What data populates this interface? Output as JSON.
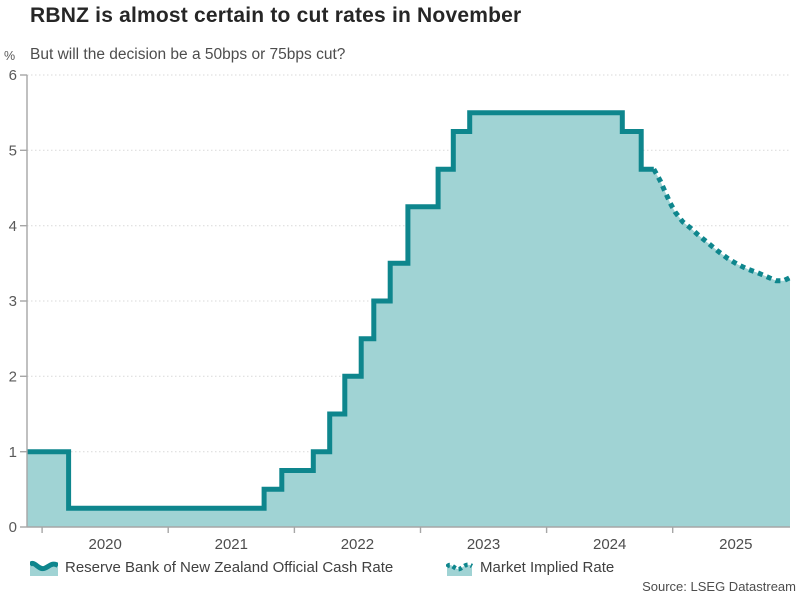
{
  "source": {
    "text": "Source: LSEG Datastream"
  },
  "colors": {
    "line": "#0e868d",
    "fill": "#a0d3d4",
    "grid": "#d9d9d9",
    "axis": "#a6a6a6",
    "tick_text": "#595959",
    "title_text": "#262626",
    "subtitle_text": "#4d4d4d",
    "legend_text": "#404040"
  },
  "chart_data": {
    "type": "area",
    "title": "RBNZ is almost certain to cut rates in November",
    "subtitle": "But will the decision be a 50bps or 75bps cut?",
    "ylabel": "%",
    "xlabel": "",
    "ylim": [
      0,
      6
    ],
    "x_domain": [
      2019.88,
      2025.93
    ],
    "y_ticks": [
      0,
      1,
      2,
      3,
      4,
      5,
      6
    ],
    "x_ticks": [
      2020,
      2021,
      2022,
      2023,
      2024,
      2025
    ],
    "grid": "horizontal-dotted",
    "legend_position": "bottom",
    "series": [
      {
        "name": "Reserve Bank of New Zealand Official Cash Rate",
        "style": "step-solid",
        "points": [
          [
            2019.88,
            1.0
          ],
          [
            2020.21,
            0.25
          ],
          [
            2021.76,
            0.5
          ],
          [
            2021.9,
            0.75
          ],
          [
            2022.15,
            1.0
          ],
          [
            2022.28,
            1.5
          ],
          [
            2022.4,
            2.0
          ],
          [
            2022.53,
            2.5
          ],
          [
            2022.63,
            3.0
          ],
          [
            2022.76,
            3.5
          ],
          [
            2022.9,
            4.25
          ],
          [
            2023.14,
            4.75
          ],
          [
            2023.26,
            5.25
          ],
          [
            2023.39,
            5.5
          ],
          [
            2024.6,
            5.25
          ],
          [
            2024.75,
            4.75
          ],
          [
            2024.85,
            4.75
          ]
        ]
      },
      {
        "name": "Market Implied Rate",
        "style": "line-dotted",
        "points": [
          [
            2024.85,
            4.75
          ],
          [
            2024.9,
            4.6
          ],
          [
            2024.94,
            4.45
          ],
          [
            2024.98,
            4.3
          ],
          [
            2025.02,
            4.18
          ],
          [
            2025.08,
            4.05
          ],
          [
            2025.14,
            3.97
          ],
          [
            2025.2,
            3.88
          ],
          [
            2025.28,
            3.77
          ],
          [
            2025.36,
            3.66
          ],
          [
            2025.44,
            3.56
          ],
          [
            2025.52,
            3.48
          ],
          [
            2025.6,
            3.42
          ],
          [
            2025.68,
            3.37
          ],
          [
            2025.75,
            3.32
          ],
          [
            2025.82,
            3.27
          ],
          [
            2025.88,
            3.27
          ],
          [
            2025.93,
            3.31
          ]
        ]
      }
    ]
  }
}
